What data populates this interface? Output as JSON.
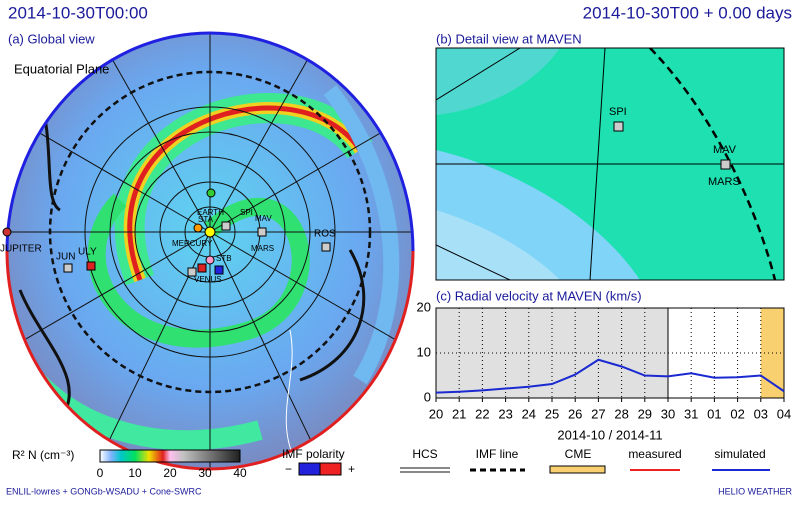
{
  "header": {
    "left_time": "2014-10-30T00:00",
    "right_time": "2014-10-30T00 + 0.00 days"
  },
  "global_view": {
    "title": "(a) Global view",
    "plane": "Equatorial Plane",
    "labels": {
      "earth": "EARTH",
      "spi": "SPI",
      "mav": "MAV",
      "mars": "MARS",
      "ros": "ROS",
      "mercury": "MERCURY",
      "jun": "JUN",
      "uly": "ULY",
      "jupiter": "JUPITER",
      "venus": "VENUS",
      "sta": "STA",
      "stb": "STB"
    }
  },
  "detail_view": {
    "title": "(b) Detail view at MAVEN",
    "labels": {
      "spi": "SPI",
      "mav": "MAV",
      "mars": "MARS"
    }
  },
  "chart_data": {
    "type": "line",
    "title": "(c) Radial velocity at MAVEN (km/s)",
    "categories": [
      "20",
      "21",
      "22",
      "23",
      "24",
      "25",
      "26",
      "27",
      "28",
      "29",
      "30",
      "31",
      "01",
      "02",
      "03",
      "04"
    ],
    "x_label": "2014-10 / 2014-11",
    "ylim": [
      0,
      20
    ],
    "yticks": [
      0,
      10,
      20
    ],
    "grid": true,
    "series": [
      {
        "name": "simulated",
        "color": "#1a2ad0",
        "values": [
          1.2,
          1.4,
          1.7,
          2.1,
          2.5,
          3.1,
          5.2,
          8.5,
          7,
          5,
          4.8,
          5.5,
          4.5,
          4.6,
          5,
          1.5
        ]
      }
    ]
  },
  "legend": {
    "colorbar_label": "R² N (cm⁻³)",
    "colorbar_ticks": [
      "0",
      "10",
      "20",
      "30",
      "40"
    ],
    "imf_polarity": "IMF polarity",
    "minus": "−",
    "plus": "+",
    "hcs": "HCS",
    "imf_line": "IMF line",
    "cme": "CME",
    "measured": "measured",
    "simulated": "simulated"
  },
  "footer": {
    "left": "ENLIL-lowres + GONGb-WSADU + Cone-SWRC",
    "right": "HELIO WEATHER"
  }
}
